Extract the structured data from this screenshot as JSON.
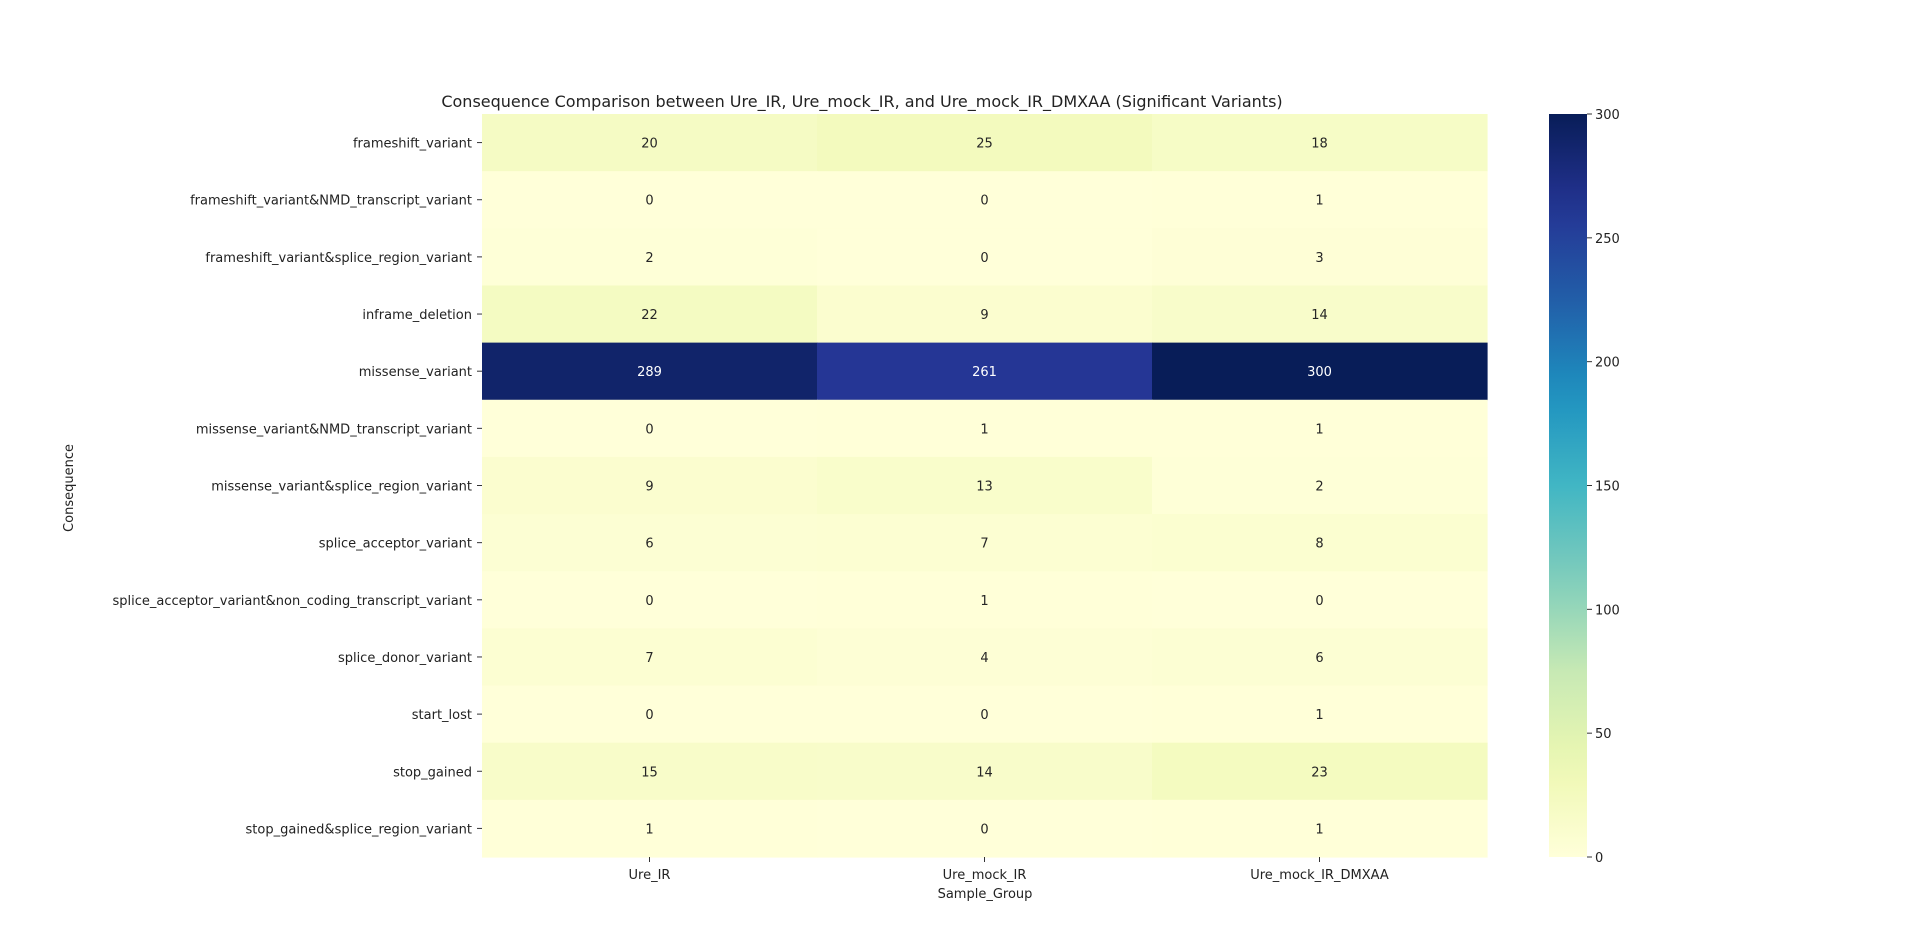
{
  "chart_data": {
    "type": "heatmap",
    "title": "Consequence Comparison between Ure_IR, Ure_mock_IR, and Ure_mock_IR_DMXAA (Significant Variants)",
    "xlabel": "Sample_Group",
    "ylabel": "Consequence",
    "columns": [
      "Ure_IR",
      "Ure_mock_IR",
      "Ure_mock_IR_DMXAA"
    ],
    "rows": [
      "frameshift_variant",
      "frameshift_variant&NMD_transcript_variant",
      "frameshift_variant&splice_region_variant",
      "inframe_deletion",
      "missense_variant",
      "missense_variant&NMD_transcript_variant",
      "missense_variant&splice_region_variant",
      "splice_acceptor_variant",
      "splice_acceptor_variant&non_coding_transcript_variant",
      "splice_donor_variant",
      "start_lost",
      "stop_gained",
      "stop_gained&splice_region_variant"
    ],
    "values": [
      [
        20,
        25,
        18
      ],
      [
        0,
        0,
        1
      ],
      [
        2,
        0,
        3
      ],
      [
        22,
        9,
        14
      ],
      [
        289,
        261,
        300
      ],
      [
        0,
        1,
        1
      ],
      [
        9,
        13,
        2
      ],
      [
        6,
        7,
        8
      ],
      [
        0,
        1,
        0
      ],
      [
        7,
        4,
        6
      ],
      [
        0,
        0,
        1
      ],
      [
        15,
        14,
        23
      ],
      [
        1,
        0,
        1
      ]
    ],
    "colormap": "YlGnBu",
    "color_range": [
      0,
      300
    ],
    "colorbar_ticks": [
      0,
      50,
      100,
      150,
      200,
      250,
      300
    ],
    "annotated": true
  }
}
